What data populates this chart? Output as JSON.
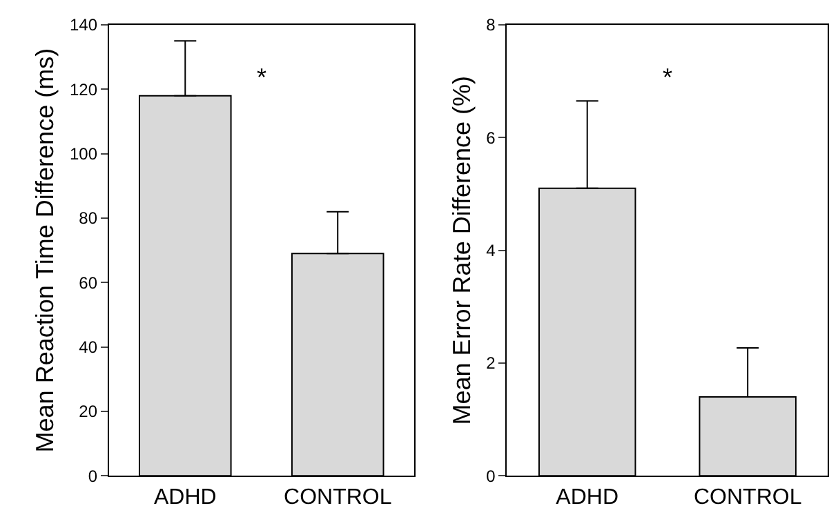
{
  "chart_data": [
    {
      "type": "bar",
      "categories": [
        "ADHD",
        "CONTROL"
      ],
      "values": [
        118,
        69
      ],
      "errors": [
        [
          118,
          135
        ],
        [
          69,
          82
        ]
      ],
      "color": "#d9d9d9",
      "ylabel": "Mean Reaction Time Difference (ms)",
      "ylim": [
        0,
        140
      ],
      "yticks": [
        0,
        20,
        40,
        60,
        80,
        100,
        120,
        140
      ],
      "annotations": [
        "*"
      ]
    },
    {
      "type": "bar",
      "categories": [
        "ADHD",
        "CONTROL"
      ],
      "values": [
        5.1,
        1.4
      ],
      "errors": [
        [
          5.1,
          6.65
        ],
        [
          1.4,
          2.27
        ]
      ],
      "color": "#d9d9d9",
      "ylabel": "Mean Error Rate Difference (%)",
      "ylim": [
        0,
        8
      ],
      "yticks": [
        0,
        2,
        4,
        6,
        8
      ],
      "annotations": [
        "*"
      ]
    }
  ]
}
